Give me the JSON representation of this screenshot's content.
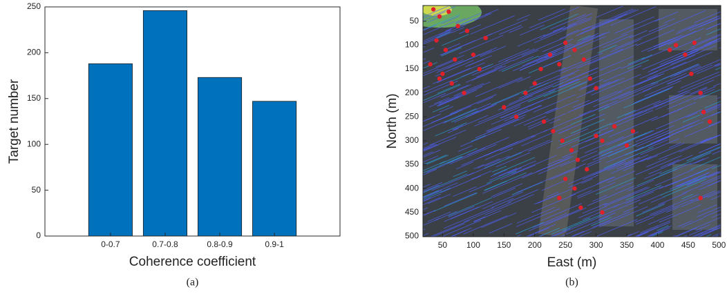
{
  "chart_data": [
    {
      "type": "bar",
      "caption": "(a)",
      "ylabel": "Target number",
      "xlabel": "Coherence coefficient",
      "categories": [
        "0-0.7",
        "0.7-0.8",
        "0.8-0.9",
        "0.9-1"
      ],
      "values": [
        188,
        246,
        173,
        147
      ],
      "color": "#0072bd",
      "ylim": [
        0,
        250
      ],
      "yticks": [
        0,
        50,
        100,
        150,
        200,
        250
      ],
      "grid": false
    },
    {
      "type": "scatter",
      "caption": "(b)",
      "ylabel": "North (m)",
      "xlabel": "East (m)",
      "color": "#e0202a",
      "yreverse": true,
      "xlim": [
        18,
        503
      ],
      "ylim": [
        17,
        501
      ],
      "xticks": [
        50,
        100,
        150,
        200,
        250,
        300,
        350,
        400,
        450,
        500
      ],
      "yticks": [
        50,
        100,
        150,
        200,
        250,
        300,
        350,
        400,
        450,
        500
      ],
      "x": [
        35,
        45,
        60,
        75,
        90,
        40,
        55,
        70,
        100,
        110,
        50,
        65,
        85,
        30,
        45,
        120,
        150,
        170,
        185,
        200,
        210,
        225,
        240,
        250,
        265,
        280,
        290,
        300,
        215,
        230,
        245,
        260,
        270,
        285,
        250,
        265,
        240,
        275,
        300,
        310,
        330,
        350,
        360,
        310,
        420,
        430,
        445,
        460,
        455,
        470,
        475,
        485,
        470
      ],
      "y": [
        25,
        40,
        30,
        60,
        70,
        90,
        110,
        130,
        120,
        150,
        160,
        180,
        200,
        140,
        170,
        85,
        230,
        250,
        200,
        180,
        150,
        120,
        140,
        95,
        110,
        130,
        170,
        190,
        260,
        280,
        300,
        320,
        340,
        360,
        380,
        400,
        420,
        440,
        290,
        300,
        270,
        310,
        280,
        450,
        110,
        100,
        120,
        95,
        160,
        200,
        240,
        260,
        420
      ]
    }
  ]
}
